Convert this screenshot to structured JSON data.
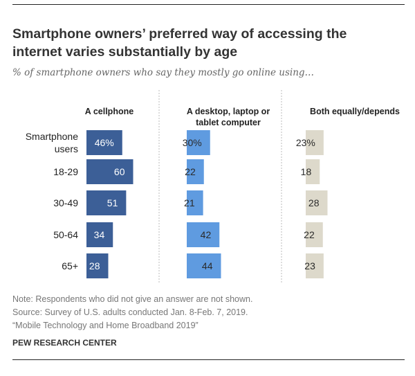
{
  "title": "Smartphone owners’ preferred way of accessing the internet varies substantially by age",
  "subtitle": "% of smartphone owners who say they mostly go online using…",
  "notes": [
    "Note: Respondents who did not give an answer are not shown.",
    "Source: Survey of U.S. adults conducted Jan. 8-Feb. 7, 2019.",
    "“Mobile Technology and Home Broadband 2019”"
  ],
  "org": "PEW RESEARCH CENTER",
  "chart_data": {
    "type": "bar",
    "orientation": "horizontal",
    "layout": "small-multiples",
    "categories": [
      [
        "Smartphone",
        "users"
      ],
      [
        "18-29"
      ],
      [
        "30-49"
      ],
      [
        "50-64"
      ],
      [
        "65+"
      ]
    ],
    "series": [
      {
        "name": "A cellphone",
        "header": [
          "A cellphone"
        ],
        "values": [
          46,
          60,
          51,
          34,
          28
        ],
        "labels": [
          "46%",
          "60",
          "51",
          "34",
          "28"
        ],
        "color": "#3c5f97",
        "label_color": "#ffffff"
      },
      {
        "name": "A desktop, laptop or tablet computer",
        "header": [
          "A desktop, laptop or",
          "tablet computer"
        ],
        "values": [
          30,
          22,
          21,
          42,
          44
        ],
        "labels": [
          "30%",
          "22",
          "21",
          "42",
          "44"
        ],
        "color": "#5f9be0",
        "label_color": "#2a2a2a"
      },
      {
        "name": "Both equally/depends",
        "header": [
          "Both equally/depends"
        ],
        "values": [
          23,
          18,
          28,
          22,
          23
        ],
        "labels": [
          "23%",
          "18",
          "28",
          "22",
          "23"
        ],
        "color": "#ddd9cb",
        "label_color": "#2a2a2a"
      }
    ],
    "xlim": [
      0,
      100
    ],
    "divider_color": "#bbbbbb"
  }
}
